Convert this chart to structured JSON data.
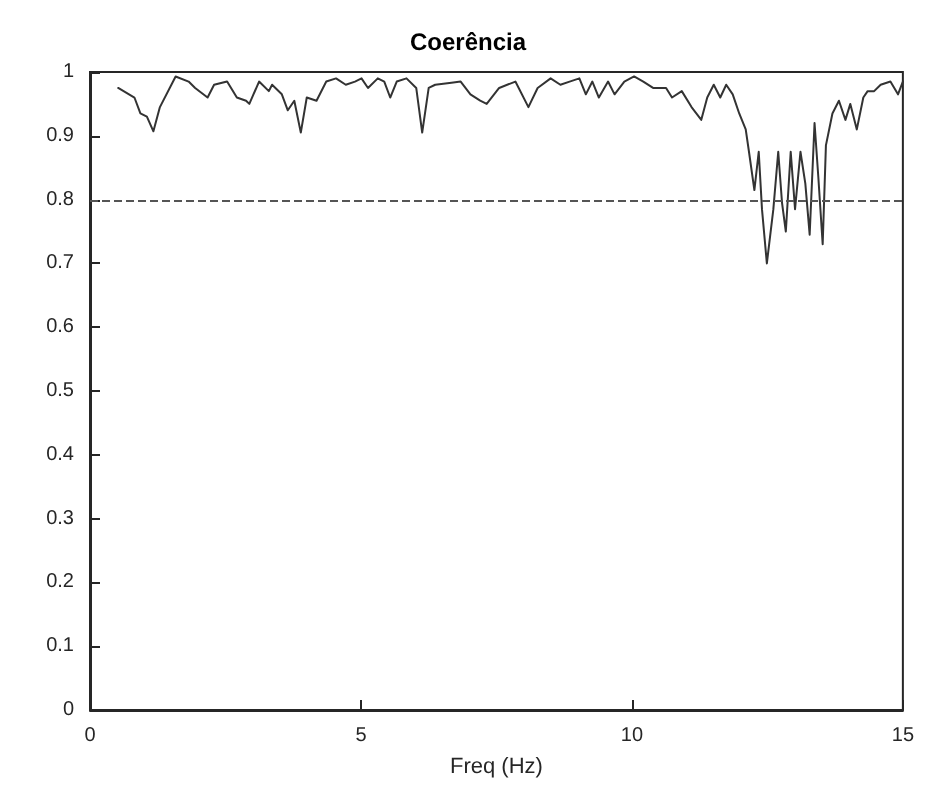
{
  "chart_data": {
    "type": "line",
    "title": "Coerência",
    "xlabel": "Freq (Hz)",
    "xlim": [
      0,
      15
    ],
    "xticks": [
      0,
      5,
      10,
      15
    ],
    "ylim": [
      0,
      1
    ],
    "yticks": [
      0,
      0.1,
      0.2,
      0.3,
      0.4,
      0.5,
      0.6,
      0.7,
      0.8,
      0.9,
      1
    ],
    "grid": false,
    "marker": "none",
    "line_style": "solid",
    "ref_lines": [
      {
        "axis": "y",
        "value": 0.8,
        "color": "#555555",
        "line_style": "dashed"
      }
    ],
    "series": [
      {
        "color": "#333333",
        "x": [
          0.52,
          0.82,
          0.93,
          1.05,
          1.17,
          1.29,
          1.58,
          1.82,
          1.94,
          2.17,
          2.29,
          2.53,
          2.71,
          2.88,
          2.94,
          3.12,
          3.3,
          3.36,
          3.54,
          3.65,
          3.77,
          3.89,
          4.0,
          4.18,
          4.36,
          4.54,
          4.72,
          4.89,
          5.01,
          5.13,
          5.31,
          5.43,
          5.54,
          5.66,
          5.84,
          6.02,
          6.13,
          6.25,
          6.37,
          6.67,
          6.84,
          7.02,
          7.2,
          7.32,
          7.55,
          7.85,
          8.09,
          8.26,
          8.5,
          8.68,
          8.85,
          9.03,
          9.15,
          9.27,
          9.39,
          9.56,
          9.68,
          9.86,
          10.04,
          10.21,
          10.39,
          10.63,
          10.74,
          10.92,
          11.1,
          11.28,
          11.39,
          11.51,
          11.63,
          11.74,
          11.86,
          11.98,
          12.1,
          12.16,
          12.26,
          12.34,
          12.4,
          12.49,
          12.61,
          12.7,
          12.77,
          12.84,
          12.93,
          13.01,
          13.11,
          13.2,
          13.28,
          13.37,
          13.44,
          13.52,
          13.58,
          13.7,
          13.82,
          13.94,
          14.03,
          14.15,
          14.27,
          14.35,
          14.47,
          14.59,
          14.77,
          14.91,
          15
        ],
        "values": [
          0.975,
          0.96,
          0.935,
          0.93,
          0.907,
          0.945,
          0.993,
          0.985,
          0.975,
          0.96,
          0.98,
          0.985,
          0.96,
          0.955,
          0.95,
          0.985,
          0.97,
          0.98,
          0.965,
          0.94,
          0.955,
          0.905,
          0.96,
          0.955,
          0.985,
          0.99,
          0.98,
          0.985,
          0.99,
          0.975,
          0.99,
          0.985,
          0.96,
          0.985,
          0.99,
          0.975,
          0.905,
          0.975,
          0.98,
          0.983,
          0.985,
          0.965,
          0.955,
          0.95,
          0.975,
          0.985,
          0.945,
          0.975,
          0.99,
          0.98,
          0.985,
          0.99,
          0.965,
          0.985,
          0.96,
          0.985,
          0.965,
          0.985,
          0.993,
          0.985,
          0.975,
          0.975,
          0.96,
          0.97,
          0.945,
          0.925,
          0.96,
          0.98,
          0.96,
          0.98,
          0.965,
          0.935,
          0.91,
          0.875,
          0.815,
          0.875,
          0.785,
          0.7,
          0.785,
          0.875,
          0.795,
          0.75,
          0.875,
          0.785,
          0.875,
          0.825,
          0.745,
          0.92,
          0.835,
          0.73,
          0.885,
          0.935,
          0.955,
          0.925,
          0.95,
          0.91,
          0.96,
          0.97,
          0.97,
          0.98,
          0.985,
          0.965,
          0.985
        ]
      }
    ]
  }
}
